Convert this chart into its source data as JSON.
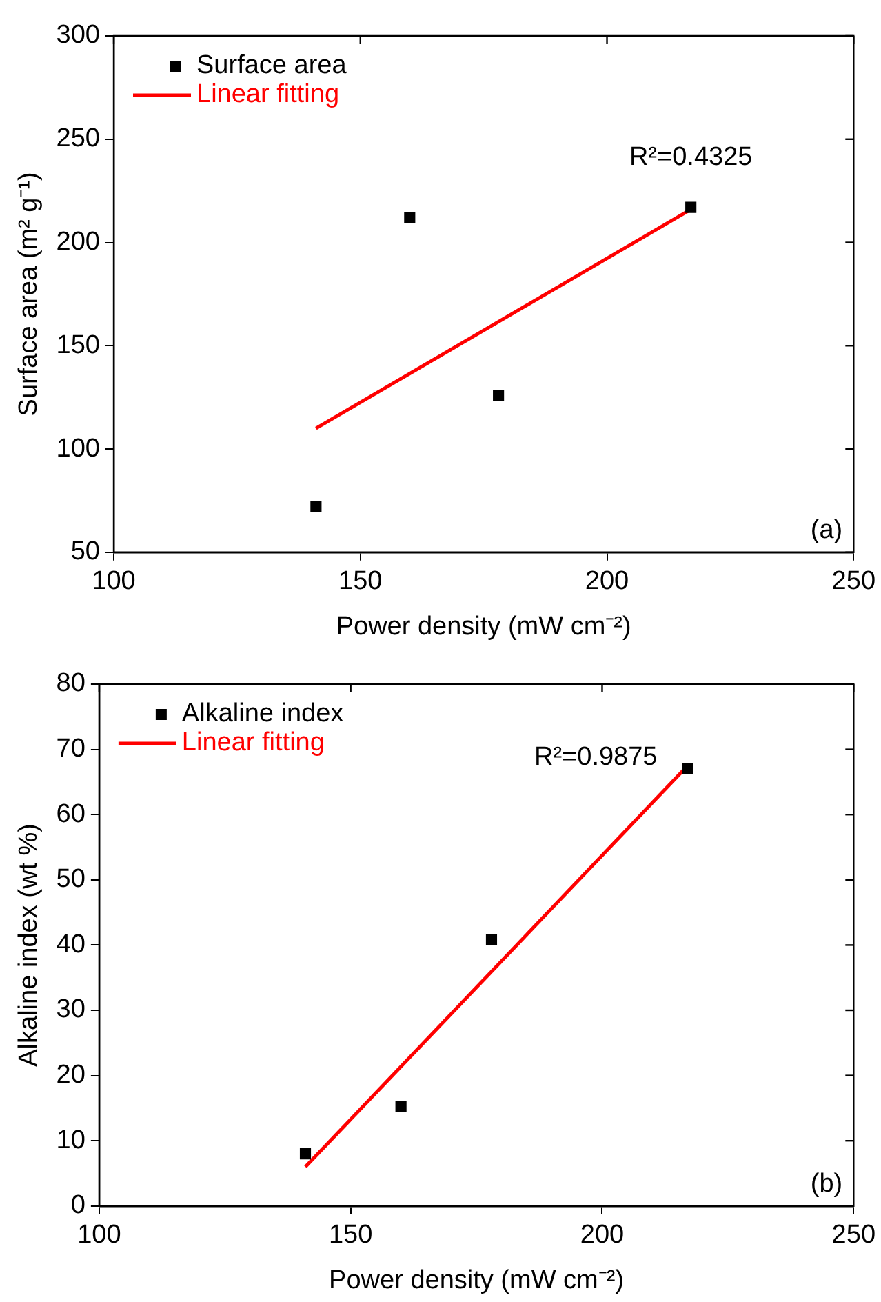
{
  "chart_data": [
    {
      "type": "scatter",
      "xlabel": "Power density (mW cm⁻²)",
      "ylabel": "Surface area (m² g⁻¹)",
      "xlim": [
        100,
        250
      ],
      "xticks": [
        100,
        150,
        200,
        250
      ],
      "ylim": [
        50,
        300
      ],
      "yticks": [
        50,
        100,
        150,
        200,
        250,
        300
      ],
      "legend": "top left",
      "grid": false,
      "marker": "square",
      "series": [
        {
          "name": "Surface area",
          "color": "#000000",
          "x": [
            141,
            160,
            178,
            217
          ],
          "values": [
            72,
            212,
            126,
            217
          ]
        },
        {
          "name": "Linear fitting",
          "type": "line",
          "color": "#ff0000",
          "marker": "none",
          "line_style": "solid",
          "x": [
            141,
            217
          ],
          "values": [
            110,
            216
          ]
        }
      ],
      "annotations": [
        "R²=0.4325",
        "(a)"
      ]
    },
    {
      "type": "scatter",
      "xlabel": "Power density (mW cm⁻²)",
      "ylabel": "Alkaline index (wt %)",
      "xlim": [
        100,
        250
      ],
      "xticks": [
        100,
        150,
        200,
        250
      ],
      "ylim": [
        0,
        80
      ],
      "yticks": [
        0,
        10,
        20,
        30,
        40,
        50,
        60,
        70,
        80
      ],
      "legend": "top left",
      "grid": false,
      "marker": "square",
      "series": [
        {
          "name": "Alkaline index",
          "color": "#000000",
          "x": [
            141,
            160,
            178,
            217
          ],
          "values": [
            8,
            15.3,
            40.8,
            67.1
          ]
        },
        {
          "name": "Linear fitting",
          "type": "line",
          "color": "#ff0000",
          "marker": "none",
          "line_style": "solid",
          "x": [
            141,
            217
          ],
          "values": [
            6,
            67.5
          ]
        }
      ],
      "annotations": [
        "R²=0.9875",
        "(b)"
      ]
    }
  ]
}
